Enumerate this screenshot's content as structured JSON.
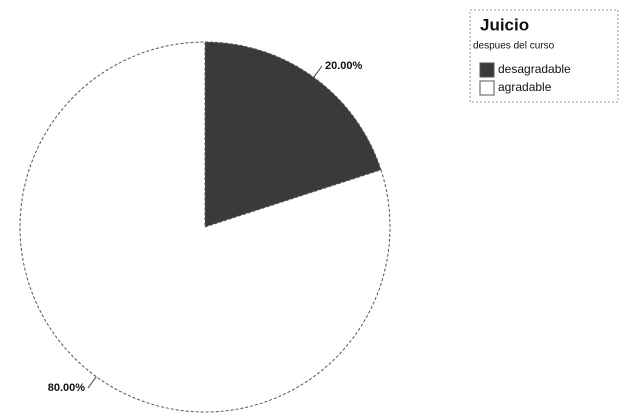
{
  "chart_data": {
    "type": "pie",
    "title": "Juicio",
    "subtitle": "despues del curso",
    "categories": [
      "desagradable",
      "agradable"
    ],
    "values": [
      20,
      80
    ],
    "value_labels": [
      "20.00%",
      "80.00%"
    ],
    "colors": [
      "#3a3a3a",
      "#ffffff"
    ],
    "legend": "top-right"
  }
}
